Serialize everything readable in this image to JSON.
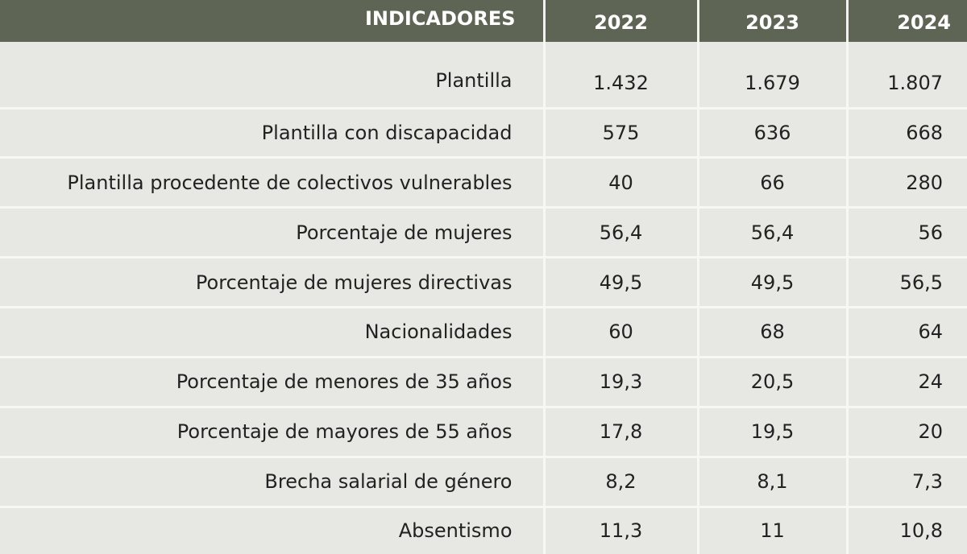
{
  "header": {
    "indicator_label": "INDICADORES",
    "years": [
      "2022",
      "2023",
      "2024"
    ]
  },
  "rows": [
    {
      "label": "Plantilla",
      "values": [
        "1.432",
        "1.679",
        "1.807"
      ]
    },
    {
      "label": "Plantilla con discapacidad",
      "values": [
        "575",
        "636",
        "668"
      ]
    },
    {
      "label": "Plantilla procedente de colectivos vulnerables",
      "values": [
        "40",
        "66",
        "280"
      ]
    },
    {
      "label": "Porcentaje de mujeres",
      "values": [
        "56,4",
        "56,4",
        "56"
      ]
    },
    {
      "label": "Porcentaje de mujeres directivas",
      "values": [
        "49,5",
        "49,5",
        "56,5"
      ]
    },
    {
      "label": "Nacionalidades",
      "values": [
        "60",
        "68",
        "64"
      ]
    },
    {
      "label": "Porcentaje de menores de 35 años",
      "values": [
        "19,3",
        "20,5",
        "24"
      ]
    },
    {
      "label": "Porcentaje de mayores de 55 años",
      "values": [
        "17,8",
        "19,5",
        "20"
      ]
    },
    {
      "label": "Brecha salarial de género",
      "values": [
        "8,2",
        "8,1",
        "7,3"
      ]
    },
    {
      "label": "Absentismo",
      "values": [
        "11,3",
        "11",
        "10,8"
      ]
    }
  ],
  "colors": {
    "header_background": "#5e6555",
    "body_background": "#e7e7e3",
    "cell_border": "#f7f7f4"
  }
}
